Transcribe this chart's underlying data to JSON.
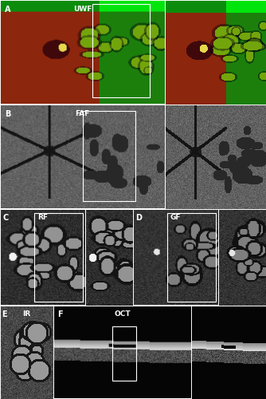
{
  "figure_size": [
    3.34,
    5.0
  ],
  "dpi": 100,
  "bg_color": "#000000",
  "panels": {
    "A": {
      "label": "A",
      "sublabel": "UWF"
    },
    "B": {
      "label": "B",
      "sublabel": "FAF"
    },
    "C": {
      "label": "C",
      "sublabel": "RF"
    },
    "D": {
      "label": "D",
      "sublabel": "GF"
    },
    "E": {
      "label": "E",
      "sublabel": "IR"
    },
    "F": {
      "label": "F",
      "sublabel": "OCT"
    }
  },
  "label_color": "#ffffff",
  "label_fontsize": 7,
  "sublabel_fontsize": 6.5,
  "border_color": "#ffffff",
  "border_linewidth": 0.7
}
